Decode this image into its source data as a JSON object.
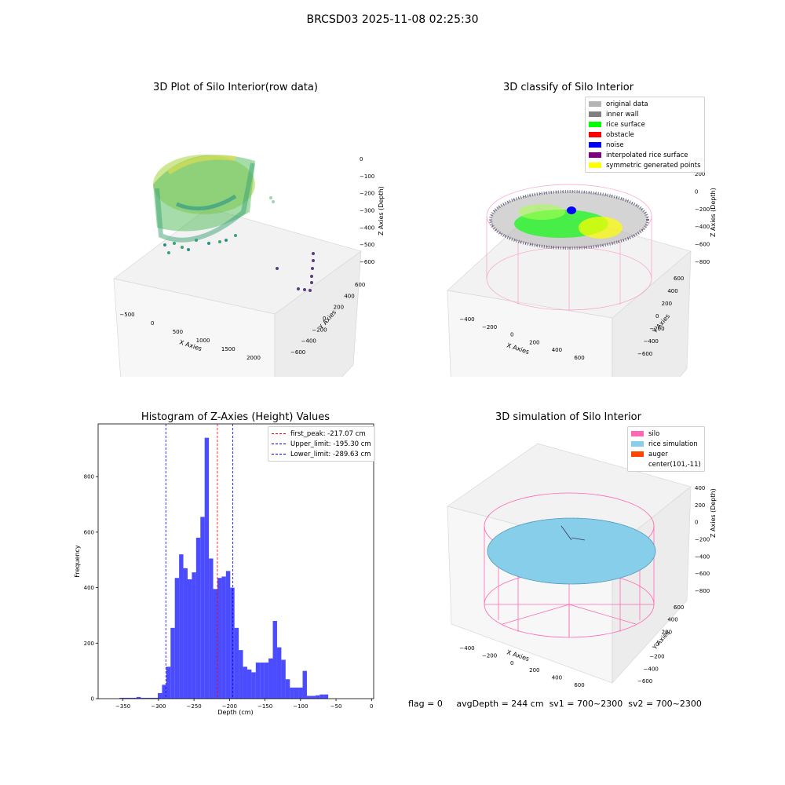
{
  "figure": {
    "suptitle": "BRCSD03 2025-11-08 02:25:30"
  },
  "panel_raw": {
    "title": "3D Plot of Silo Interior(row data)",
    "xlabel": "X Axies",
    "ylabel": "Y Axies",
    "zlabel": "Z Axies (Depth)",
    "xticks": [
      "−500",
      "0",
      "500",
      "1000",
      "1500",
      "2000"
    ],
    "yticks": [
      "−600",
      "−400",
      "−200",
      "0",
      "200",
      "400",
      "600"
    ],
    "zticks": [
      "0",
      "−100",
      "−200",
      "−300",
      "−400",
      "−500",
      "−600"
    ]
  },
  "panel_classify": {
    "title": "3D classify of Silo Interior",
    "xlabel": "X Axies",
    "ylabel": "Y Axies",
    "zlabel": "Z Axies (Depth)",
    "xticks": [
      "−400",
      "−200",
      "0",
      "200",
      "400",
      "600"
    ],
    "yticks": [
      "−600",
      "−400",
      "−200",
      "0",
      "200",
      "400",
      "600"
    ],
    "zticks": [
      "200",
      "0",
      "−200",
      "−400",
      "−600",
      "−800"
    ],
    "ztop": "400",
    "legend": [
      {
        "label": "original data",
        "color": "#b4b4b4"
      },
      {
        "label": "inner wall",
        "color": "#808080"
      },
      {
        "label": "rice surface",
        "color": "#00ff00"
      },
      {
        "label": "obstacle",
        "color": "#ff0000"
      },
      {
        "label": "noise",
        "color": "#0000ff"
      },
      {
        "label": "interpolated rice surface",
        "color": "#800080"
      },
      {
        "label": "symmetric generated points",
        "color": "#ffff00"
      }
    ]
  },
  "panel_sim": {
    "title": "3D simulation of Silo Interior",
    "xlabel": "X Axies",
    "ylabel": "Y Axies",
    "zlabel": "Z Axies (Depth)",
    "xticks": [
      "−400",
      "−200",
      "0",
      "200",
      "400",
      "600"
    ],
    "yticks": [
      "−600",
      "−400",
      "−200",
      "0",
      "200",
      "400",
      "600"
    ],
    "zticks": [
      "400",
      "200",
      "0",
      "−200",
      "−400",
      "−600",
      "−800"
    ],
    "legend": [
      {
        "label": "silo",
        "color": "#ff69b4"
      },
      {
        "label": "rice simulation",
        "color": "#87ceeb"
      },
      {
        "label": "auger",
        "color": "#ff4500"
      },
      {
        "label": "center(101,-11)",
        "color": ""
      }
    ]
  },
  "footer": {
    "flag": "flag = 0",
    "avg": "avgDepth = 244 cm",
    "sv1": "sv1 = 700~2300",
    "sv2": "sv2 = 700~2300"
  },
  "chart_data": {
    "type": "bar",
    "title": "Histogram of Z-Axies (Height) Values",
    "xlabel": "Depth (cm)",
    "ylabel": "Frequency",
    "xlim": [
      -385,
      3
    ],
    "ylim": [
      0,
      990
    ],
    "xticks": [
      -350,
      -300,
      -250,
      -200,
      -150,
      -100,
      -50,
      0
    ],
    "xtick_labels": [
      "−350",
      "−300",
      "−250",
      "−200",
      "−150",
      "−100",
      "−50",
      "0"
    ],
    "yticks": [
      0,
      200,
      400,
      600,
      800
    ],
    "yticks_labels": [
      "0",
      "200",
      "400",
      "600",
      "800"
    ],
    "bar_color": "#0000ff",
    "bin_start": -355,
    "bin_width": 6,
    "values": [
      3,
      3,
      3,
      3,
      6,
      3,
      3,
      3,
      3,
      20,
      50,
      115,
      255,
      435,
      520,
      470,
      430,
      455,
      580,
      655,
      940,
      505,
      395,
      435,
      440,
      460,
      400,
      255,
      175,
      115,
      105,
      95,
      130,
      130,
      130,
      145,
      280,
      185,
      140,
      70,
      40,
      40,
      40,
      100,
      10,
      10,
      12,
      15,
      15
    ],
    "lines": [
      {
        "label": "first_peak: -217.07 cm",
        "x": -217.07,
        "color": "#ff0000"
      },
      {
        "label": "Upper_limit: -195.30 cm",
        "x": -195.3,
        "color": "#0000ff"
      },
      {
        "label": "Lower_limit: -289.63 cm",
        "x": -289.63,
        "color": "#0000ff"
      }
    ]
  }
}
